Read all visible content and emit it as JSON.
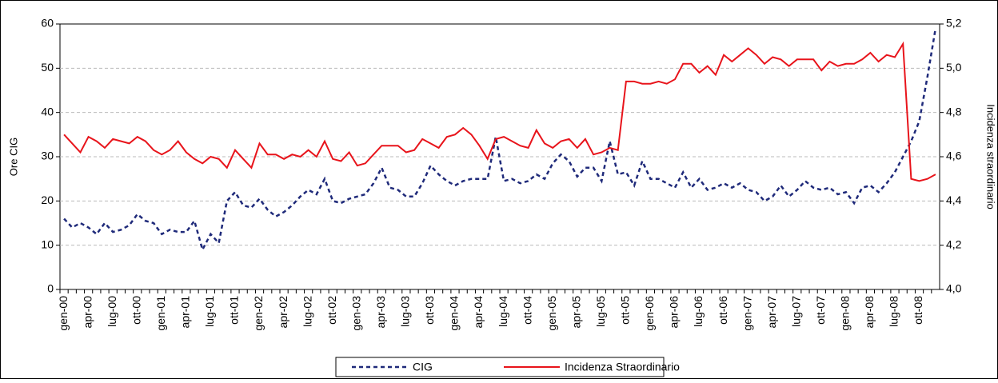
{
  "chart_data": {
    "type": "line",
    "categories": [
      "gen-00",
      null,
      null,
      "apr-00",
      null,
      null,
      "lug-00",
      null,
      null,
      "ott-00",
      null,
      null,
      "gen-01",
      null,
      null,
      "apr-01",
      null,
      null,
      "lug-01",
      null,
      null,
      "ott-01",
      null,
      null,
      "gen-02",
      null,
      null,
      "apr-02",
      null,
      null,
      "lug-02",
      null,
      null,
      "ott-02",
      null,
      null,
      "gen-03",
      null,
      null,
      "apr-03",
      null,
      null,
      "lug-03",
      null,
      null,
      "ott-03",
      null,
      null,
      "gen-04",
      null,
      null,
      "apr-04",
      null,
      null,
      "lug-04",
      null,
      null,
      "ott-04",
      null,
      null,
      "gen-05",
      null,
      null,
      "apr-05",
      null,
      null,
      "lug-05",
      null,
      null,
      "ott-05",
      null,
      null,
      "gen-06",
      null,
      null,
      "apr-06",
      null,
      null,
      "lug-06",
      null,
      null,
      "ott-06",
      null,
      null,
      "gen-07",
      null,
      null,
      "apr-07",
      null,
      null,
      "lug-07",
      null,
      null,
      "ott-07",
      null,
      null,
      "gen-08",
      null,
      null,
      "apr-08",
      null,
      null,
      "lug-08",
      null,
      null,
      "ott-08",
      null,
      null
    ],
    "series": [
      {
        "name": "CIG",
        "color": "#1f2a7a",
        "dashed": true,
        "axis": "y",
        "values": [
          16,
          14,
          15,
          14,
          12.5,
          15,
          13,
          13.5,
          14.5,
          17,
          15.5,
          15,
          12.5,
          13.5,
          13,
          13,
          15.5,
          9,
          12.5,
          10.5,
          20,
          22,
          19,
          18.5,
          20.5,
          18,
          16.5,
          17.5,
          19,
          21,
          22.5,
          21.5,
          25,
          20,
          19.5,
          20.5,
          21,
          21.5,
          24,
          27.5,
          23,
          22.5,
          21,
          21,
          24,
          28,
          26,
          24.5,
          23.5,
          24.5,
          25,
          25,
          25,
          34.5,
          24.5,
          25,
          24,
          24.5,
          26,
          25,
          28.5,
          30.5,
          29,
          25.5,
          27.5,
          27.5,
          24.5,
          33.5,
          26,
          26.5,
          23.5,
          29,
          25,
          25,
          24,
          23,
          26.5,
          23,
          25,
          22.5,
          23,
          24,
          23,
          24,
          22.5,
          22,
          20,
          21,
          23.5,
          21,
          22.5,
          24.5,
          23,
          22.5,
          23,
          21.5,
          22,
          19.5,
          23,
          23.5,
          22,
          24,
          26.5,
          30,
          33.5,
          38,
          48,
          59
        ]
      },
      {
        "name": "Incidenza Straordinario",
        "color": "#e8141b",
        "dashed": false,
        "axis": "y2",
        "values": [
          4.7,
          4.66,
          4.62,
          4.69,
          4.67,
          4.64,
          4.68,
          4.67,
          4.66,
          4.69,
          4.67,
          4.63,
          4.61,
          4.63,
          4.67,
          4.62,
          4.59,
          4.57,
          4.6,
          4.59,
          4.55,
          4.63,
          4.59,
          4.55,
          4.66,
          4.61,
          4.61,
          4.59,
          4.61,
          4.6,
          4.63,
          4.6,
          4.67,
          4.59,
          4.58,
          4.62,
          4.56,
          4.57,
          4.61,
          4.65,
          4.65,
          4.65,
          4.62,
          4.63,
          4.68,
          4.66,
          4.64,
          4.69,
          4.7,
          4.73,
          4.7,
          4.65,
          4.59,
          4.68,
          4.69,
          4.67,
          4.65,
          4.64,
          4.72,
          4.66,
          4.64,
          4.67,
          4.68,
          4.64,
          4.68,
          4.61,
          4.62,
          4.64,
          4.63,
          4.94,
          4.94,
          4.93,
          4.93,
          4.94,
          4.93,
          4.95,
          5.02,
          5.02,
          4.98,
          5.01,
          4.97,
          5.06,
          5.03,
          5.06,
          5.09,
          5.06,
          5.02,
          5.05,
          5.04,
          5.01,
          5.04,
          5.04,
          5.04,
          4.99,
          5.03,
          5.01,
          5.02,
          5.02,
          5.04,
          5.07,
          5.03,
          5.06,
          5.05,
          5.11,
          4.5,
          4.49,
          4.5,
          4.52
        ]
      }
    ],
    "ylabel": "Ore CIG",
    "y2label": "Incidenza straordinario",
    "ylim": [
      0,
      60
    ],
    "yticks": [
      0,
      10,
      20,
      30,
      40,
      50,
      60
    ],
    "y2lim": [
      4.0,
      5.2
    ],
    "y2ticks": [
      {
        "value": 4.0,
        "label": "4,0"
      },
      {
        "value": 4.2,
        "label": "4,2"
      },
      {
        "value": 4.4,
        "label": "4,4"
      },
      {
        "value": 4.6,
        "label": "4,6"
      },
      {
        "value": 4.8,
        "label": "4,8"
      },
      {
        "value": 5.0,
        "label": "5,0"
      },
      {
        "value": 5.2,
        "label": "5,2"
      }
    ],
    "grid": true,
    "legend": "bottom"
  }
}
